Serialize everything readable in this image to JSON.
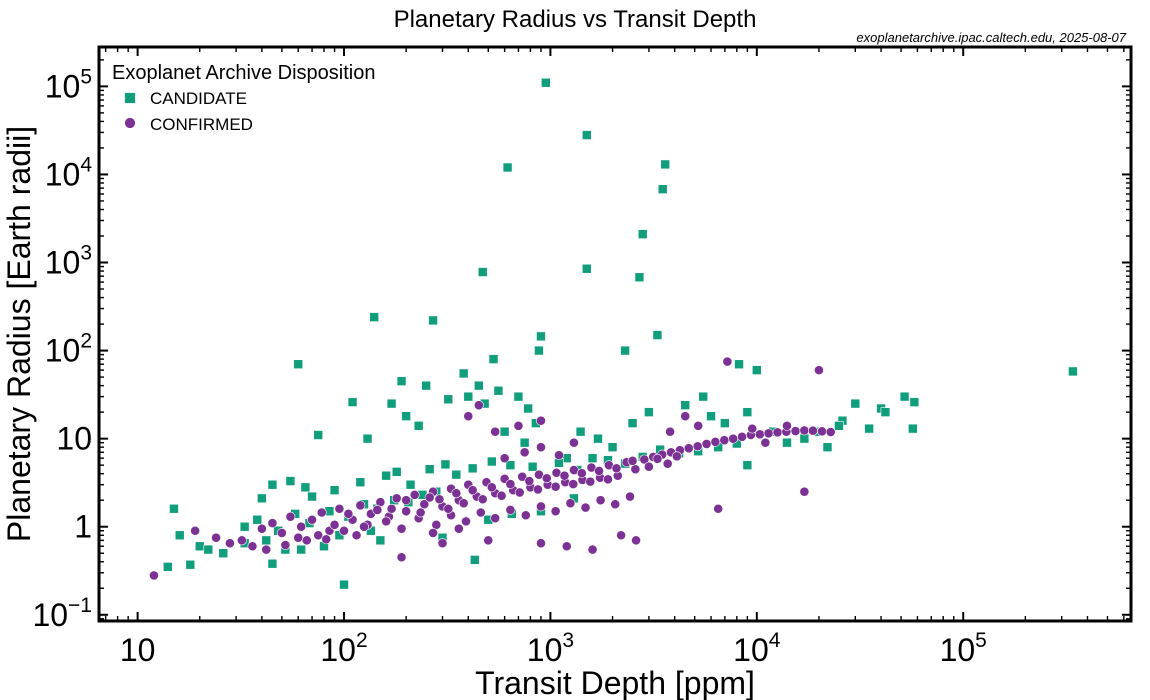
{
  "chart_data": {
    "type": "scatter",
    "title": "Planetary Radius vs Transit Depth",
    "source_note": "exoplanetarchive.ipac.caltech.edu, 2025-08-07",
    "xlabel": "Transit Depth [ppm]",
    "ylabel": "Planetary Radius [Earth radii]",
    "xscale": "log",
    "yscale": "log",
    "xlim": [
      6.5,
      650000
    ],
    "ylim": [
      0.085,
      280000
    ],
    "x_ticks": [
      {
        "value": 10,
        "base": "10",
        "exp": ""
      },
      {
        "value": 100,
        "base": "10",
        "exp": "2"
      },
      {
        "value": 1000,
        "base": "10",
        "exp": "3"
      },
      {
        "value": 10000,
        "base": "10",
        "exp": "4"
      },
      {
        "value": 100000,
        "base": "10",
        "exp": "5"
      }
    ],
    "y_ticks": [
      {
        "value": 0.1,
        "base": "10",
        "exp": "−1"
      },
      {
        "value": 1,
        "base": "1",
        "exp": ""
      },
      {
        "value": 10,
        "base": "10",
        "exp": ""
      },
      {
        "value": 100,
        "base": "10",
        "exp": "2"
      },
      {
        "value": 1000,
        "base": "10",
        "exp": "3"
      },
      {
        "value": 10000,
        "base": "10",
        "exp": "4"
      },
      {
        "value": 100000,
        "base": "10",
        "exp": "5"
      }
    ],
    "grid": false,
    "legend": {
      "title": "Exoplanet Archive Disposition",
      "position": "top-left",
      "entries": [
        {
          "label": "CANDIDATE",
          "marker": "square",
          "color": "#119e7c"
        },
        {
          "label": "CONFIRMED",
          "marker": "circle",
          "color": "#7b3294"
        }
      ]
    },
    "series": [
      {
        "name": "CANDIDATE",
        "marker": "square",
        "color": "#119e7c",
        "points": [
          [
            950,
            110000
          ],
          [
            1500,
            28000
          ],
          [
            620,
            12000
          ],
          [
            3600,
            13000
          ],
          [
            3500,
            6800
          ],
          [
            2800,
            2100
          ],
          [
            1500,
            850
          ],
          [
            2700,
            680
          ],
          [
            470,
            780
          ],
          [
            140,
            240
          ],
          [
            270,
            220
          ],
          [
            3300,
            150
          ],
          [
            900,
            145
          ],
          [
            60,
            70
          ],
          [
            450,
            40
          ],
          [
            530,
            80
          ],
          [
            380,
            55
          ],
          [
            880,
            100
          ],
          [
            2300,
            100
          ],
          [
            8200,
            70
          ],
          [
            10000,
            60
          ],
          [
            340000,
            58
          ],
          [
            52000,
            30
          ],
          [
            58000,
            26
          ],
          [
            30000,
            25
          ],
          [
            40000,
            22
          ],
          [
            42000,
            20
          ],
          [
            57000,
            13
          ],
          [
            35000,
            13
          ],
          [
            26000,
            16
          ],
          [
            25000,
            14
          ],
          [
            15,
            1.6
          ],
          [
            20,
            0.6
          ],
          [
            16,
            0.8
          ],
          [
            22,
            0.55
          ],
          [
            26,
            0.5
          ],
          [
            18,
            0.37
          ],
          [
            14,
            0.35
          ],
          [
            100,
            0.22
          ],
          [
            430,
            0.42
          ],
          [
            45,
            0.38
          ],
          [
            52,
            0.55
          ],
          [
            80,
            0.6
          ],
          [
            150,
            0.7
          ],
          [
            300,
            0.75
          ],
          [
            75,
            11
          ],
          [
            110,
            26
          ],
          [
            190,
            45
          ],
          [
            170,
            25
          ],
          [
            130,
            10
          ],
          [
            200,
            18
          ],
          [
            230,
            14
          ],
          [
            250,
            40
          ],
          [
            320,
            28
          ],
          [
            400,
            30
          ],
          [
            480,
            25
          ],
          [
            560,
            35
          ],
          [
            700,
            30
          ],
          [
            780,
            22
          ],
          [
            850,
            15
          ],
          [
            600,
            12
          ],
          [
            750,
            9
          ],
          [
            1200,
            6
          ],
          [
            1400,
            12
          ],
          [
            1700,
            10
          ],
          [
            2000,
            8
          ],
          [
            2500,
            15
          ],
          [
            3000,
            20
          ],
          [
            4500,
            24
          ],
          [
            5500,
            30
          ],
          [
            6000,
            18
          ],
          [
            7000,
            15
          ],
          [
            9000,
            20
          ],
          [
            12000,
            12
          ],
          [
            14000,
            9
          ],
          [
            17000,
            10
          ],
          [
            20000,
            12
          ],
          [
            22000,
            8
          ],
          [
            9000,
            5
          ],
          [
            40,
            2.1
          ],
          [
            45,
            3.0
          ],
          [
            55,
            3.3
          ],
          [
            65,
            2.8
          ],
          [
            70,
            2.2
          ],
          [
            90,
            2.6
          ],
          [
            120,
            3.2
          ],
          [
            160,
            3.8
          ],
          [
            180,
            4.2
          ],
          [
            210,
            3.0
          ],
          [
            260,
            4.5
          ],
          [
            310,
            5.1
          ],
          [
            350,
            3.9
          ],
          [
            420,
            4.6
          ],
          [
            520,
            5.5
          ],
          [
            640,
            5.0
          ],
          [
            820,
            4.8
          ],
          [
            1100,
            5.3
          ],
          [
            1350,
            4.4
          ],
          [
            1600,
            6.0
          ],
          [
            1900,
            5.7
          ],
          [
            2300,
            5.2
          ],
          [
            2800,
            6.2
          ],
          [
            3400,
            7.5
          ],
          [
            4200,
            6.8
          ],
          [
            5200,
            7.2
          ],
          [
            6500,
            8.0
          ],
          [
            8000,
            8.8
          ],
          [
            33,
            1.0
          ],
          [
            38,
            1.2
          ],
          [
            48,
            0.9
          ],
          [
            58,
            1.4
          ],
          [
            68,
            1.1
          ],
          [
            85,
            1.5
          ],
          [
            105,
            1.3
          ],
          [
            125,
            1.8
          ],
          [
            145,
            1.6
          ],
          [
            175,
            2.0
          ],
          [
            205,
            1.9
          ],
          [
            240,
            2.3
          ],
          [
            280,
            2.5
          ],
          [
            33,
            0.65
          ],
          [
            42,
            0.7
          ],
          [
            62,
            0.55
          ],
          [
            95,
            0.8
          ],
          [
            135,
            0.9
          ],
          [
            500,
            1.2
          ],
          [
            650,
            1.4
          ],
          [
            900,
            1.5
          ],
          [
            1300,
            2.1
          ]
        ]
      },
      {
        "name": "CONFIRMED",
        "marker": "circle",
        "color": "#7b3294",
        "points": [
          [
            12,
            0.28
          ],
          [
            19,
            0.9
          ],
          [
            24,
            0.75
          ],
          [
            28,
            0.65
          ],
          [
            32,
            0.7
          ],
          [
            36,
            0.6
          ],
          [
            40,
            0.95
          ],
          [
            45,
            1.1
          ],
          [
            50,
            0.85
          ],
          [
            55,
            1.3
          ],
          [
            62,
            1.0
          ],
          [
            70,
            1.2
          ],
          [
            78,
            1.45
          ],
          [
            85,
            0.9
          ],
          [
            95,
            1.6
          ],
          [
            110,
            1.2
          ],
          [
            120,
            1.75
          ],
          [
            135,
            1.4
          ],
          [
            150,
            1.9
          ],
          [
            165,
            1.3
          ],
          [
            180,
            2.1
          ],
          [
            200,
            1.5
          ],
          [
            220,
            2.3
          ],
          [
            245,
            1.8
          ],
          [
            270,
            2.5
          ],
          [
            300,
            1.7
          ],
          [
            330,
            2.7
          ],
          [
            360,
            2.0
          ],
          [
            400,
            3.0
          ],
          [
            440,
            2.2
          ],
          [
            490,
            3.2
          ],
          [
            540,
            2.4
          ],
          [
            600,
            3.5
          ],
          [
            660,
            2.6
          ],
          [
            730,
            3.7
          ],
          [
            800,
            2.8
          ],
          [
            880,
            3.9
          ],
          [
            970,
            3.0
          ],
          [
            1070,
            4.1
          ],
          [
            1180,
            3.2
          ],
          [
            1300,
            4.4
          ],
          [
            1430,
            3.4
          ],
          [
            1580,
            4.7
          ],
          [
            1740,
            3.6
          ],
          [
            1920,
            5.0
          ],
          [
            2120,
            3.8
          ],
          [
            2340,
            5.4
          ],
          [
            2580,
            4.5
          ],
          [
            2850,
            5.8
          ],
          [
            3150,
            6.2
          ],
          [
            3480,
            6.6
          ],
          [
            3840,
            7.0
          ],
          [
            4240,
            7.4
          ],
          [
            4680,
            7.8
          ],
          [
            5170,
            8.2
          ],
          [
            5710,
            8.7
          ],
          [
            6300,
            9.2
          ],
          [
            6960,
            9.6
          ],
          [
            7680,
            10.0
          ],
          [
            8480,
            10.5
          ],
          [
            9360,
            11.0
          ],
          [
            10340,
            11.2
          ],
          [
            11400,
            11.5
          ],
          [
            12600,
            11.8
          ],
          [
            13900,
            12.0
          ],
          [
            15400,
            12.2
          ],
          [
            17000,
            12.4
          ],
          [
            18700,
            12.3
          ],
          [
            20700,
            12.1
          ],
          [
            22800,
            11.9
          ],
          [
            7200,
            75
          ],
          [
            20000,
            60
          ],
          [
            17000,
            2.5
          ],
          [
            6500,
            1.6
          ],
          [
            9500,
            13
          ],
          [
            11000,
            9
          ],
          [
            14000,
            14
          ],
          [
            4500,
            18
          ],
          [
            5200,
            14
          ],
          [
            3800,
            12
          ],
          [
            700,
            14
          ],
          [
            540,
            12
          ],
          [
            900,
            16
          ],
          [
            400,
            18
          ],
          [
            450,
            24
          ],
          [
            600,
            6
          ],
          [
            750,
            7
          ],
          [
            900,
            8
          ],
          [
            1100,
            6.5
          ],
          [
            1300,
            9
          ],
          [
            100,
            0.9
          ],
          [
            130,
            1.05
          ],
          [
            160,
            1.15
          ],
          [
            190,
            0.95
          ],
          [
            230,
            1.25
          ],
          [
            280,
            1.05
          ],
          [
            330,
            1.35
          ],
          [
            390,
            1.15
          ],
          [
            460,
            1.45
          ],
          [
            540,
            1.25
          ],
          [
            640,
            1.55
          ],
          [
            760,
            1.35
          ],
          [
            900,
            1.7
          ],
          [
            1060,
            1.5
          ],
          [
            1250,
            1.85
          ],
          [
            1480,
            1.65
          ],
          [
            1750,
            2.0
          ],
          [
            2060,
            1.8
          ],
          [
            2430,
            2.2
          ],
          [
            60,
            0.75
          ],
          [
            75,
            0.8
          ],
          [
            90,
            1.05
          ],
          [
            105,
            1.4
          ],
          [
            125,
            1.0
          ],
          [
            145,
            1.55
          ],
          [
            170,
            1.6
          ],
          [
            200,
            2.0
          ],
          [
            235,
            1.45
          ],
          [
            260,
            2.15
          ],
          [
            290,
            2.05
          ],
          [
            320,
            1.6
          ],
          [
            350,
            2.4
          ],
          [
            380,
            1.85
          ],
          [
            420,
            2.6
          ],
          [
            470,
            2.05
          ],
          [
            520,
            2.8
          ],
          [
            580,
            2.25
          ],
          [
            640,
            3.05
          ],
          [
            710,
            2.45
          ],
          [
            790,
            3.3
          ],
          [
            870,
            2.65
          ],
          [
            960,
            3.55
          ],
          [
            1060,
            2.85
          ],
          [
            1170,
            3.8
          ],
          [
            1290,
            3.05
          ],
          [
            1420,
            4.05
          ],
          [
            1560,
            3.25
          ],
          [
            1720,
            4.3
          ],
          [
            1900,
            3.45
          ],
          [
            2090,
            4.6
          ],
          [
            1200,
            0.6
          ],
          [
            1600,
            0.55
          ],
          [
            2200,
            0.8
          ],
          [
            2600,
            0.7
          ],
          [
            900,
            0.65
          ],
          [
            500,
            0.7
          ],
          [
            300,
            0.65
          ],
          [
            190,
            0.45
          ],
          [
            270,
            0.85
          ],
          [
            360,
            0.95
          ],
          [
            42,
            0.55
          ],
          [
            52,
            0.62
          ],
          [
            66,
            0.7
          ],
          [
            82,
            0.72
          ],
          [
            115,
            0.8
          ],
          [
            2500,
            5.6
          ],
          [
            3000,
            4.8
          ],
          [
            3300,
            5.9
          ],
          [
            3700,
            5.2
          ],
          [
            4100,
            6.3
          ]
        ]
      }
    ]
  }
}
